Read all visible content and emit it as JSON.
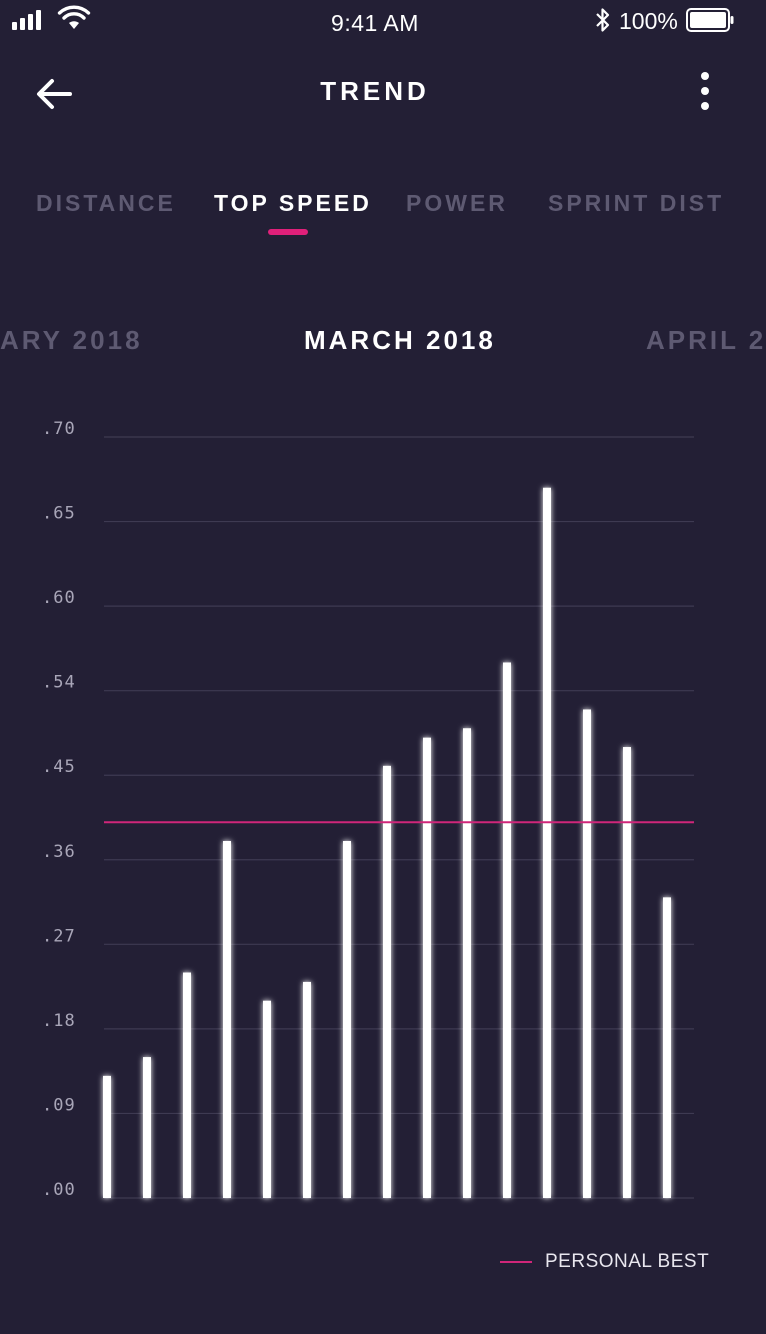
{
  "status_bar": {
    "time": "9:41 AM",
    "battery": "100%"
  },
  "header": {
    "title": "TREND",
    "back_icon": "arrow-left-icon",
    "more_icon": "more-vertical-icon"
  },
  "tabs": [
    {
      "label": "DISTANCE",
      "active": false
    },
    {
      "label": "TOP SPEED",
      "active": true
    },
    {
      "label": "POWER",
      "active": false
    },
    {
      "label": "SPRINT DIST",
      "active": false
    }
  ],
  "months": {
    "previous": "ARY 2018",
    "current": "MARCH 2018",
    "next": "APRIL 2"
  },
  "colors": {
    "background": "#231f35",
    "accent": "#e0207a",
    "personal_best_line": "#d0267a",
    "inactive_text": "#5e5a72",
    "bar": "#ffffff"
  },
  "chart_data": {
    "type": "bar",
    "title": "",
    "xlabel": "",
    "ylabel": "",
    "y_ticks": [
      ".00",
      ".09",
      ".18",
      ".27",
      ".36",
      ".45",
      ".54",
      ".60",
      ".65",
      ".70"
    ],
    "values": [
      0.13,
      0.15,
      0.24,
      0.38,
      0.21,
      0.23,
      0.38,
      0.46,
      0.49,
      0.5,
      0.56,
      0.67,
      0.52,
      0.48,
      0.32
    ],
    "personal_best": 0.4,
    "legend": "PERSONAL BEST",
    "grid": true
  }
}
